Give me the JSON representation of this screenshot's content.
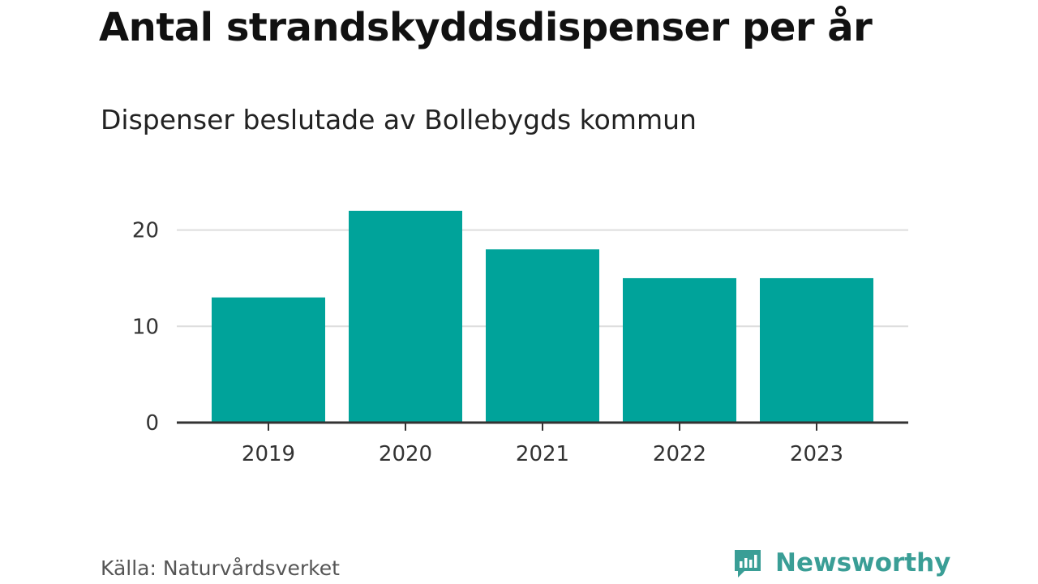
{
  "header": {
    "title": "Antal strandskyddsdispenser per år",
    "subtitle": "Dispenser beslutade av Bollebygds kommun"
  },
  "footer": {
    "source": "Källa: Naturvårdsverket",
    "brand": "Newsworthy"
  },
  "colors": {
    "bar": "#00a39a",
    "brand": "#3a9e96",
    "grid": "#dddddd",
    "axis": "#333333"
  },
  "chart_data": {
    "type": "bar",
    "title": "Antal strandskyddsdispenser per år",
    "subtitle": "Dispenser beslutade av Bollebygds kommun",
    "xlabel": "",
    "ylabel": "",
    "categories": [
      "2019",
      "2020",
      "2021",
      "2022",
      "2023"
    ],
    "values": [
      13,
      22,
      18,
      15,
      15
    ],
    "ylim": [
      0,
      23
    ],
    "yticks": [
      0,
      10,
      20
    ],
    "grid": true,
    "legend": "none"
  }
}
